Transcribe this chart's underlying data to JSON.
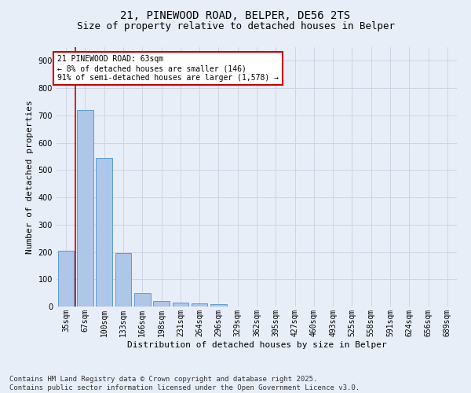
{
  "title_line1": "21, PINEWOOD ROAD, BELPER, DE56 2TS",
  "title_line2": "Size of property relative to detached houses in Belper",
  "xlabel": "Distribution of detached houses by size in Belper",
  "ylabel": "Number of detached properties",
  "categories": [
    "35sqm",
    "67sqm",
    "100sqm",
    "133sqm",
    "166sqm",
    "198sqm",
    "231sqm",
    "264sqm",
    "296sqm",
    "329sqm",
    "362sqm",
    "395sqm",
    "427sqm",
    "460sqm",
    "493sqm",
    "525sqm",
    "558sqm",
    "591sqm",
    "624sqm",
    "656sqm",
    "689sqm"
  ],
  "values": [
    203,
    720,
    545,
    196,
    48,
    20,
    13,
    11,
    8,
    0,
    0,
    0,
    0,
    0,
    0,
    0,
    0,
    0,
    0,
    0,
    0
  ],
  "bar_color": "#aec6e8",
  "bar_edge_color": "#5b9bd5",
  "vline_color": "#cc0000",
  "vline_x": 0.5,
  "annotation_text": "21 PINEWOOD ROAD: 63sqm\n← 8% of detached houses are smaller (146)\n91% of semi-detached houses are larger (1,578) →",
  "annotation_box_color": "#ffffff",
  "annotation_box_edge_color": "#cc0000",
  "ylim": [
    0,
    950
  ],
  "yticks": [
    0,
    100,
    200,
    300,
    400,
    500,
    600,
    700,
    800,
    900
  ],
  "grid_color": "#cdd5e5",
  "background_color": "#e8eef8",
  "footer_line1": "Contains HM Land Registry data © Crown copyright and database right 2025.",
  "footer_line2": "Contains public sector information licensed under the Open Government Licence v3.0.",
  "title_fontsize": 10,
  "subtitle_fontsize": 9,
  "footer_fontsize": 6.5,
  "axis_label_fontsize": 8,
  "tick_fontsize": 7,
  "annotation_fontsize": 7
}
